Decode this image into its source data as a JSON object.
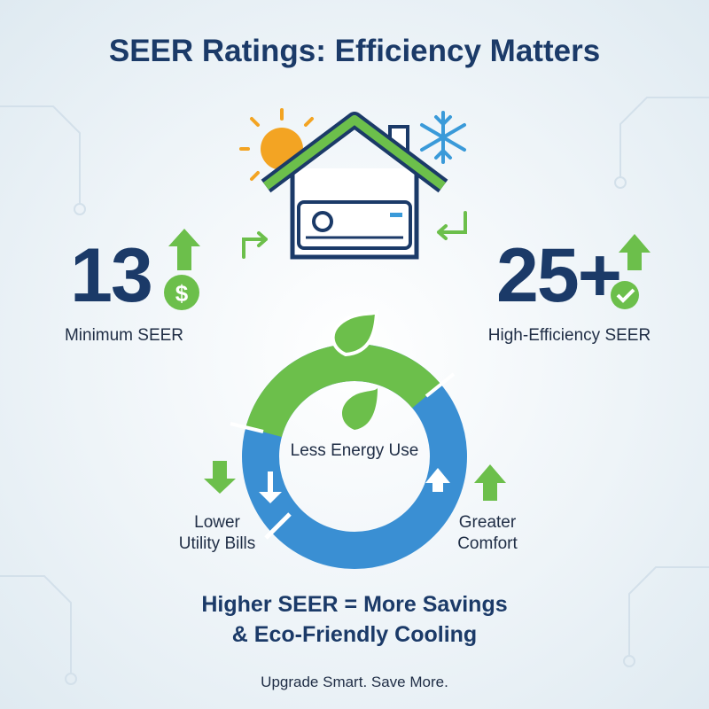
{
  "title": "SEER Ratings: Efficiency Matters",
  "left": {
    "value": "13",
    "label": "Minimum SEER"
  },
  "right": {
    "value": "25+",
    "label": "High-Efficiency SEER"
  },
  "ring": {
    "center": "Less Energy Use",
    "left": [
      "Lower",
      "Utility Bills"
    ],
    "right": [
      "Greater",
      "Comfort"
    ]
  },
  "tagline": [
    "Higher SEER = More Savings",
    "& Eco-Friendly Cooling"
  ],
  "footer": "Upgrade Smart. Save More."
}
